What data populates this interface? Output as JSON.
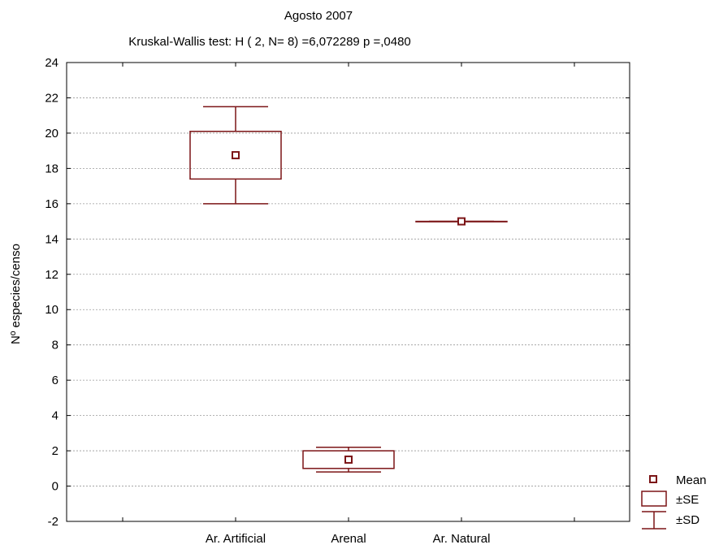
{
  "chart_data": {
    "type": "boxplot",
    "title": "Agosto 2007",
    "subtitle": "Kruskal-Wallis test: H ( 2, N= 8) =6,072289 p =,0480",
    "xlabel": "",
    "ylabel": "Nº especies/censo",
    "ylim": [
      -2,
      24
    ],
    "yticks": [
      -2,
      0,
      2,
      4,
      6,
      8,
      10,
      12,
      14,
      16,
      18,
      20,
      22,
      24
    ],
    "categories": [
      "Ar. Artificial",
      "Arenal",
      "Ar. Natural"
    ],
    "series": [
      {
        "category": "Ar. Artificial",
        "mean": 18.75,
        "se_low": 17.4,
        "se_high": 20.1,
        "sd_low": 16.0,
        "sd_high": 21.5
      },
      {
        "category": "Arenal",
        "mean": 1.5,
        "se_low": 1.0,
        "se_high": 2.0,
        "sd_low": 0.8,
        "sd_high": 2.2
      },
      {
        "category": "Ar. Natural",
        "mean": 15.0,
        "se_low": 15.0,
        "se_high": 15.0,
        "sd_low": 15.0,
        "sd_high": 15.0
      }
    ],
    "legend": {
      "position": "bottom-right",
      "items": [
        "Mean",
        "±SE",
        "±SD"
      ]
    },
    "grid": true,
    "colors": {
      "series": "#7b1416",
      "grid": "#9a9a9a",
      "axis": "#000000"
    }
  }
}
